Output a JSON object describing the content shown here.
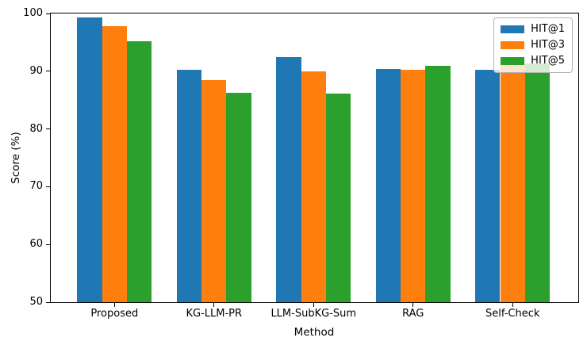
{
  "chart_data": {
    "type": "bar",
    "title": "",
    "xlabel": "Method",
    "ylabel": "Score (%)",
    "categories": [
      "Proposed",
      "KG-LLM-PR",
      "LLM-SubKG-Sum",
      "RAG",
      "Self-Check"
    ],
    "series": [
      {
        "name": "HIT@1",
        "color": "#1f77b4",
        "values": [
          99.3,
          90.3,
          92.4,
          90.4,
          90.2
        ]
      },
      {
        "name": "HIT@3",
        "color": "#ff7f0e",
        "values": [
          97.8,
          88.4,
          90.0,
          90.2,
          91.2
        ]
      },
      {
        "name": "HIT@5",
        "color": "#2ca02c",
        "values": [
          95.2,
          86.3,
          86.1,
          91.0,
          91.3
        ]
      }
    ],
    "ylim": [
      50,
      100
    ],
    "yticks": [
      50,
      60,
      70,
      80,
      90,
      100
    ],
    "xlim": [
      -0.64,
      4.66
    ],
    "bar_width": 0.25,
    "grid": false,
    "legend_position": "upper-right",
    "axis_color": "#000000",
    "background_color": "#ffffff"
  }
}
